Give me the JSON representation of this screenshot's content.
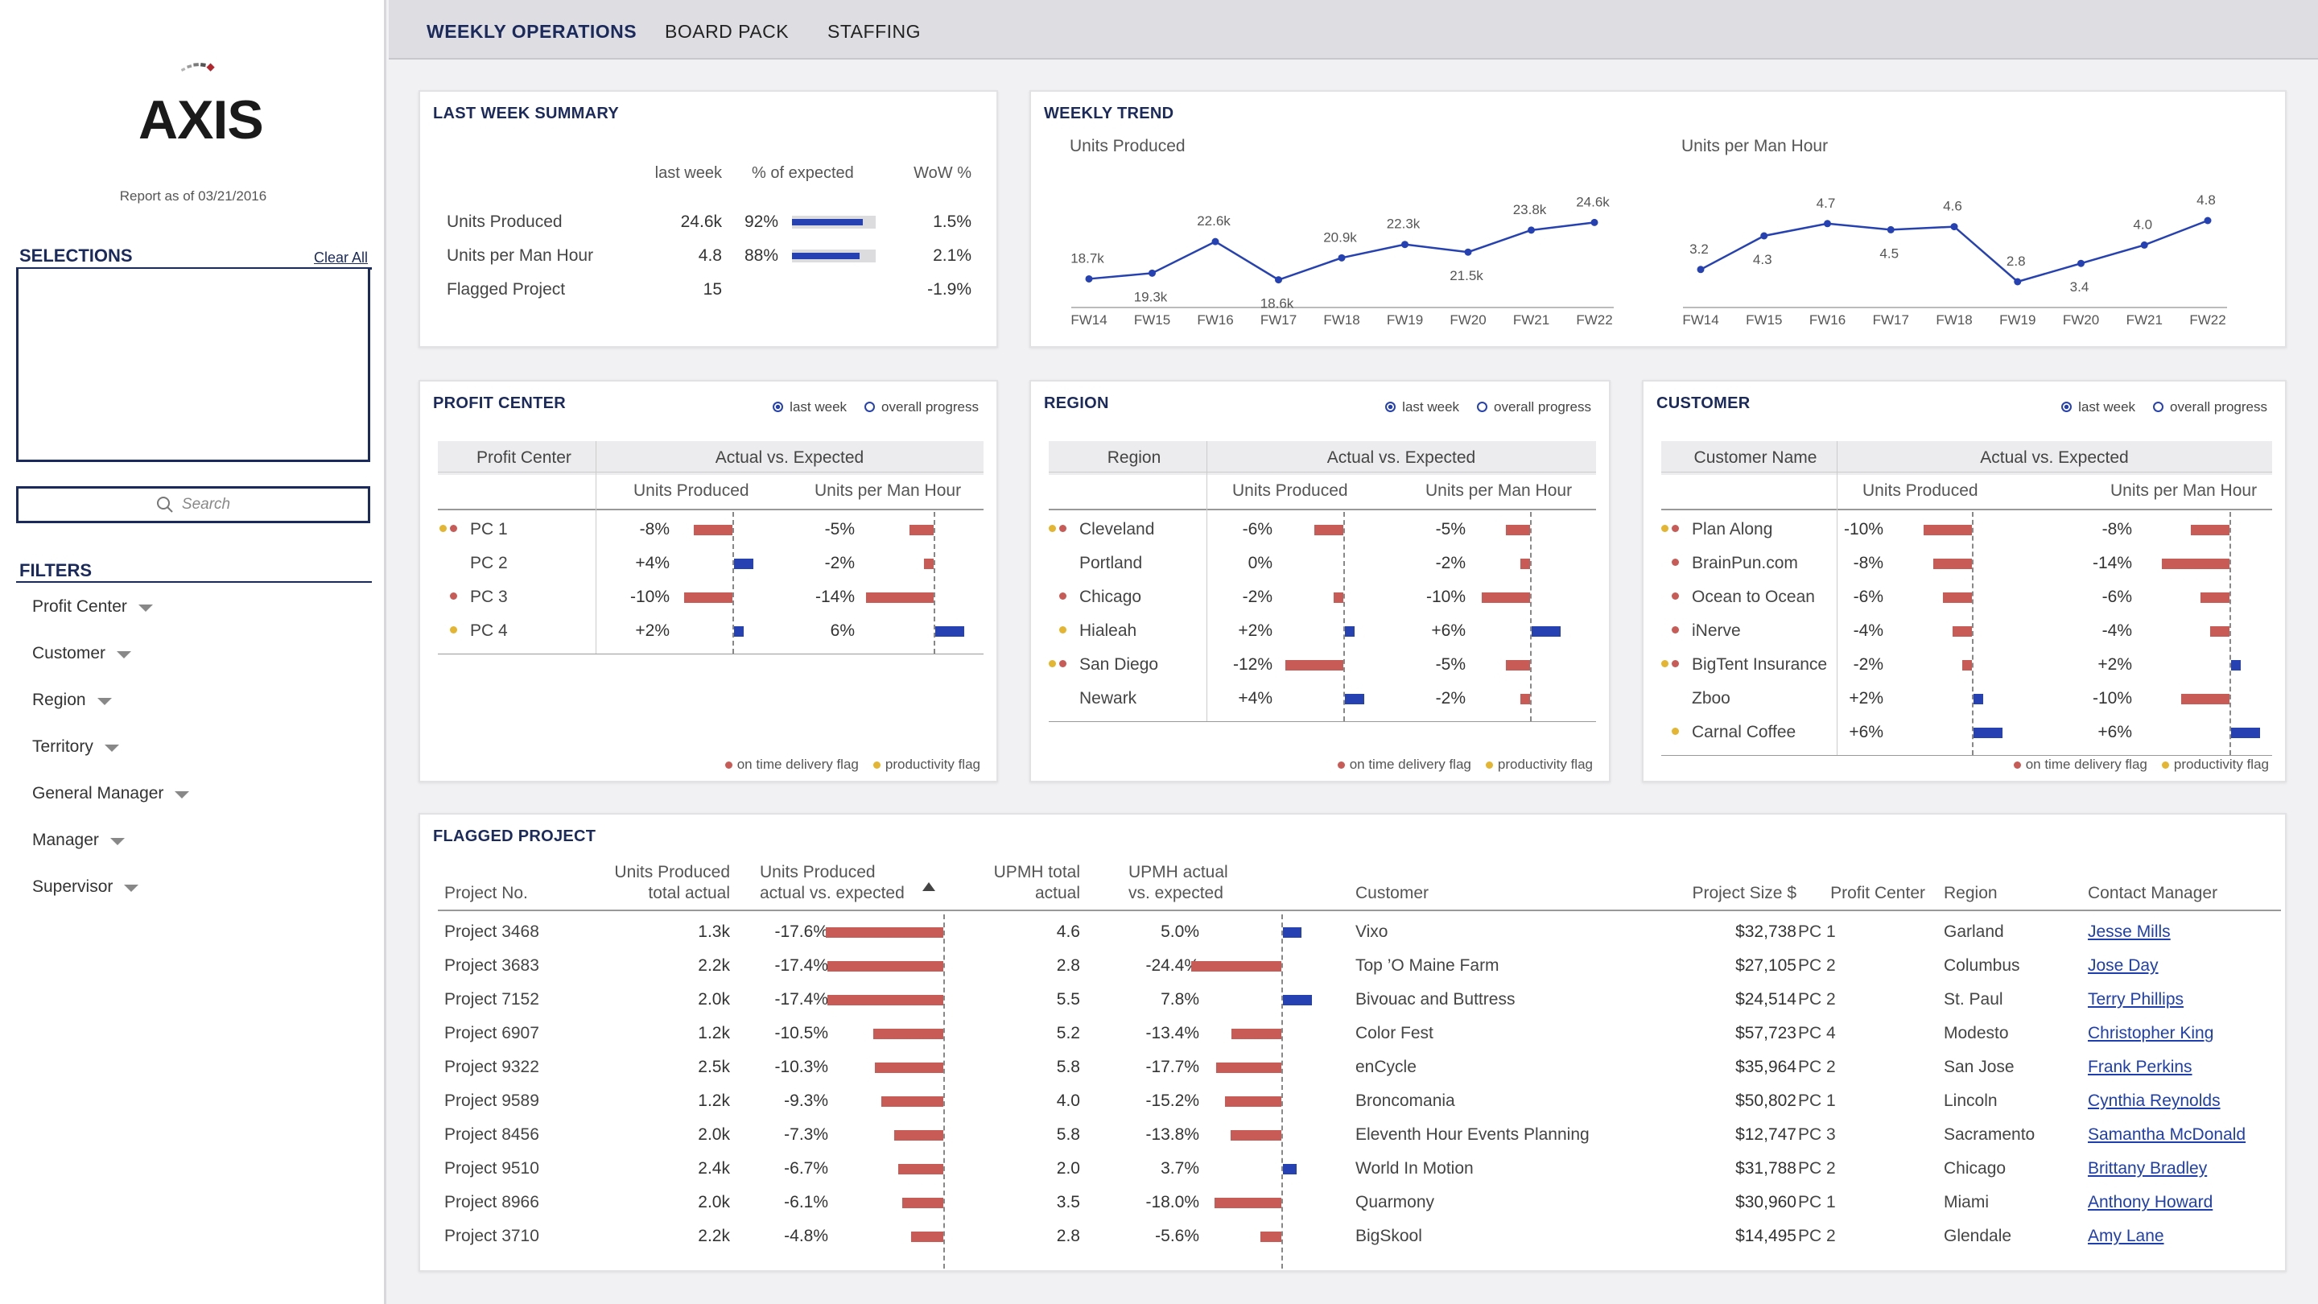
{
  "sidebar": {
    "logo_text": "AXIS",
    "report_date": "Report as of 03/21/2016",
    "selections_title": "SELECTIONS",
    "clear_all": "Clear All",
    "search_placeholder": "Search",
    "filters_title": "FILTERS",
    "filters": [
      "Profit Center",
      "Customer",
      "Region",
      "Territory",
      "General Manager",
      "Manager",
      "Supervisor"
    ]
  },
  "nav": {
    "tabs": [
      "WEEKLY OPERATIONS",
      "BOARD PACK",
      "STAFFING"
    ],
    "active": 0
  },
  "summary": {
    "title": "LAST WEEK SUMMARY",
    "headers": [
      "last week",
      "% of expected",
      "WoW %"
    ],
    "rows": [
      {
        "label": "Units Produced",
        "last": "24.6k",
        "pct": "92%",
        "pct_value": 0.92,
        "wow": "1.5%"
      },
      {
        "label": "Units per Man Hour",
        "last": "4.8",
        "pct": "88%",
        "pct_value": 0.88,
        "wow": "2.1%"
      },
      {
        "label": "Flagged Project",
        "last": "15",
        "pct": "",
        "pct_value": null,
        "wow": "-1.9%"
      }
    ]
  },
  "trend": {
    "title": "WEEKLY TREND",
    "chart_data": [
      {
        "type": "line",
        "title": "Units Produced",
        "x": [
          "FW14",
          "FW15",
          "FW16",
          "FW17",
          "FW18",
          "FW19",
          "FW20",
          "FW21",
          "FW22"
        ],
        "values": [
          18.7,
          19.3,
          22.6,
          18.6,
          20.9,
          22.3,
          21.5,
          23.8,
          24.6
        ],
        "labels": [
          "18.7k",
          "19.3k",
          "22.6k",
          "18.6k",
          "20.9k",
          "22.3k",
          "21.5k",
          "23.8k",
          "24.6k"
        ],
        "label_pos": [
          "above",
          "below",
          "above",
          "below",
          "above",
          "above",
          "below",
          "above",
          "above"
        ]
      },
      {
        "type": "line",
        "title": "Units per Man Hour",
        "x": [
          "FW14",
          "FW15",
          "FW16",
          "FW17",
          "FW18",
          "FW19",
          "FW20",
          "FW21",
          "FW22"
        ],
        "values": [
          3.2,
          4.3,
          4.7,
          4.5,
          4.6,
          2.8,
          3.4,
          4.0,
          4.8
        ],
        "labels": [
          "3.2",
          "4.3",
          "4.7",
          "4.5",
          "4.6",
          "2.8",
          "3.4",
          "4.0",
          "4.8"
        ],
        "label_pos": [
          "above",
          "below",
          "above",
          "below",
          "above",
          "above",
          "below",
          "above",
          "above"
        ]
      }
    ]
  },
  "radio": {
    "last_week": "last week",
    "overall": "overall progress"
  },
  "flags": {
    "on_time": "on time delivery flag",
    "productivity": "productivity flag"
  },
  "colors": {
    "neg": "#c95b56",
    "pos": "#2541b2",
    "yellow": "#e3b531",
    "navy": "#1b2a5c"
  },
  "breakdowns": [
    {
      "title": "PROFIT CENTER",
      "col": "Profit Center",
      "group": "Actual vs. Expected",
      "sub": [
        "Units Produced",
        "Units per Man Hour"
      ],
      "rows": [
        {
          "name": "PC 1",
          "flags": [
            "yel",
            "red"
          ],
          "up": "-8%",
          "upv": -8,
          "uph": "-5%",
          "uphv": -5
        },
        {
          "name": "PC 2",
          "flags": [],
          "up": "+4%",
          "upv": 4,
          "uph": "-2%",
          "uphv": -2
        },
        {
          "name": "PC 3",
          "flags": [
            "red"
          ],
          "up": "-10%",
          "upv": -10,
          "uph": "-14%",
          "uphv": -14
        },
        {
          "name": "PC 4",
          "flags": [
            "yel"
          ],
          "up": "+2%",
          "upv": 2,
          "uph": "6%",
          "uphv": 6
        }
      ]
    },
    {
      "title": "REGION",
      "col": "Region",
      "group": "Actual vs. Expected",
      "sub": [
        "Units Produced",
        "Units per Man Hour"
      ],
      "rows": [
        {
          "name": "Cleveland",
          "flags": [
            "yel",
            "red"
          ],
          "up": "-6%",
          "upv": -6,
          "uph": "-5%",
          "uphv": -5
        },
        {
          "name": "Portland",
          "flags": [],
          "up": "0%",
          "upv": 0,
          "uph": "-2%",
          "uphv": -2
        },
        {
          "name": "Chicago",
          "flags": [
            "red"
          ],
          "up": "-2%",
          "upv": -2,
          "uph": "-10%",
          "uphv": -10
        },
        {
          "name": "Hialeah",
          "flags": [
            "yel"
          ],
          "up": "+2%",
          "upv": 2,
          "uph": "+6%",
          "uphv": 6
        },
        {
          "name": "San Diego",
          "flags": [
            "yel",
            "red"
          ],
          "up": "-12%",
          "upv": -12,
          "uph": "-5%",
          "uphv": -5
        },
        {
          "name": "Newark",
          "flags": [],
          "up": "+4%",
          "upv": 4,
          "uph": "-2%",
          "uphv": -2
        }
      ]
    },
    {
      "title": "CUSTOMER",
      "col": "Customer Name",
      "group": "Actual vs. Expected",
      "sub": [
        "Units Produced",
        "Units per Man Hour"
      ],
      "rows": [
        {
          "name": "Plan Along",
          "flags": [
            "yel",
            "red"
          ],
          "up": "-10%",
          "upv": -10,
          "uph": "-8%",
          "uphv": -8
        },
        {
          "name": "BrainPun.com",
          "flags": [
            "red"
          ],
          "up": "-8%",
          "upv": -8,
          "uph": "-14%",
          "uphv": -14
        },
        {
          "name": "Ocean to Ocean",
          "flags": [
            "red"
          ],
          "up": "-6%",
          "upv": -6,
          "uph": "-6%",
          "uphv": -6
        },
        {
          "name": "iNerve",
          "flags": [
            "red"
          ],
          "up": "-4%",
          "upv": -4,
          "uph": "-4%",
          "uphv": -4
        },
        {
          "name": "BigTent Insurance",
          "flags": [
            "yel",
            "red"
          ],
          "up": "-2%",
          "upv": -2,
          "uph": "+2%",
          "uphv": 2
        },
        {
          "name": "Zboo",
          "flags": [],
          "up": "+2%",
          "upv": 2,
          "uph": "-10%",
          "uphv": -10
        },
        {
          "name": "Carnal Coffee",
          "flags": [
            "yel"
          ],
          "up": "+6%",
          "upv": 6,
          "uph": "+6%",
          "uphv": 6
        }
      ]
    }
  ],
  "flagged": {
    "title": "FLAGGED PROJECT",
    "headers": {
      "project": "Project No.",
      "up_total": [
        "Units Produced",
        "total actual"
      ],
      "up_vs": [
        "Units Produced",
        "actual vs. expected"
      ],
      "upmh_total": [
        "UPMH total",
        "actual"
      ],
      "upmh_vs": [
        "UPMH actual",
        "vs. expected"
      ],
      "customer": "Customer",
      "size": "Project Size $",
      "pc": "Profit Center",
      "region": "Region",
      "contact": "Contact Manager"
    },
    "rows": [
      {
        "project": "Project 3468",
        "up_total": "1.3k",
        "up_vs": "-17.6%",
        "upv": -17.6,
        "upmh_total": "4.6",
        "upmh_vs": "5.0%",
        "upmhv": 5.0,
        "customer": "Vixo",
        "size": "$32,738",
        "pc": "PC 1",
        "region": "Garland",
        "contact": "Jesse Mills"
      },
      {
        "project": "Project 3683",
        "up_total": "2.2k",
        "up_vs": "-17.4%",
        "upv": -17.4,
        "upmh_total": "2.8",
        "upmh_vs": "-24.4%",
        "upmhv": -24.4,
        "customer": "Top ’O Maine Farm",
        "size": "$27,105",
        "pc": "PC 2",
        "region": "Columbus",
        "contact": "Jose Day"
      },
      {
        "project": "Project 7152",
        "up_total": "2.0k",
        "up_vs": "-17.4%",
        "upv": -17.4,
        "upmh_total": "5.5",
        "upmh_vs": "7.8%",
        "upmhv": 7.8,
        "customer": "Bivouac and Buttress",
        "size": "$24,514",
        "pc": "PC 2",
        "region": "St. Paul",
        "contact": "Terry Phillips"
      },
      {
        "project": "Project 6907",
        "up_total": "1.2k",
        "up_vs": "-10.5%",
        "upv": -10.5,
        "upmh_total": "5.2",
        "upmh_vs": "-13.4%",
        "upmhv": -13.4,
        "customer": "Color Fest",
        "size": "$57,723",
        "pc": "PC 4",
        "region": "Modesto",
        "contact": "Christopher King"
      },
      {
        "project": "Project 9322",
        "up_total": "2.5k",
        "up_vs": "-10.3%",
        "upv": -10.3,
        "upmh_total": "5.8",
        "upmh_vs": "-17.7%",
        "upmhv": -17.7,
        "customer": "enCycle",
        "size": "$35,964",
        "pc": "PC 2",
        "region": "San Jose",
        "contact": "Frank Perkins"
      },
      {
        "project": "Project 9589",
        "up_total": "1.2k",
        "up_vs": "-9.3%",
        "upv": -9.3,
        "upmh_total": "4.0",
        "upmh_vs": "-15.2%",
        "upmhv": -15.2,
        "customer": "Broncomania",
        "size": "$50,802",
        "pc": "PC 1",
        "region": "Lincoln",
        "contact": "Cynthia Reynolds"
      },
      {
        "project": "Project 8456",
        "up_total": "2.0k",
        "up_vs": "-7.3%",
        "upv": -7.3,
        "upmh_total": "5.8",
        "upmh_vs": "-13.8%",
        "upmhv": -13.8,
        "customer": "Eleventh Hour Events Planning",
        "size": "$12,747",
        "pc": "PC 3",
        "region": "Sacramento",
        "contact": "Samantha McDonald"
      },
      {
        "project": "Project 9510",
        "up_total": "2.4k",
        "up_vs": "-6.7%",
        "upv": -6.7,
        "upmh_total": "2.0",
        "upmh_vs": "3.7%",
        "upmhv": 3.7,
        "customer": "World In Motion",
        "size": "$31,788",
        "pc": "PC 2",
        "region": "Chicago",
        "contact": "Brittany Bradley"
      },
      {
        "project": "Project 8966",
        "up_total": "2.0k",
        "up_vs": "-6.1%",
        "upv": -6.1,
        "upmh_total": "3.5",
        "upmh_vs": "-18.0%",
        "upmhv": -18.0,
        "customer": "Quarmony",
        "size": "$30,960",
        "pc": "PC 1",
        "region": "Miami",
        "contact": "Anthony Howard"
      },
      {
        "project": "Project 3710",
        "up_total": "2.2k",
        "up_vs": "-4.8%",
        "upv": -4.8,
        "upmh_total": "2.8",
        "upmh_vs": "-5.6%",
        "upmhv": -5.6,
        "customer": "BigSkool",
        "size": "$14,495",
        "pc": "PC 2",
        "region": "Glendale",
        "contact": "Amy Lane"
      }
    ]
  }
}
